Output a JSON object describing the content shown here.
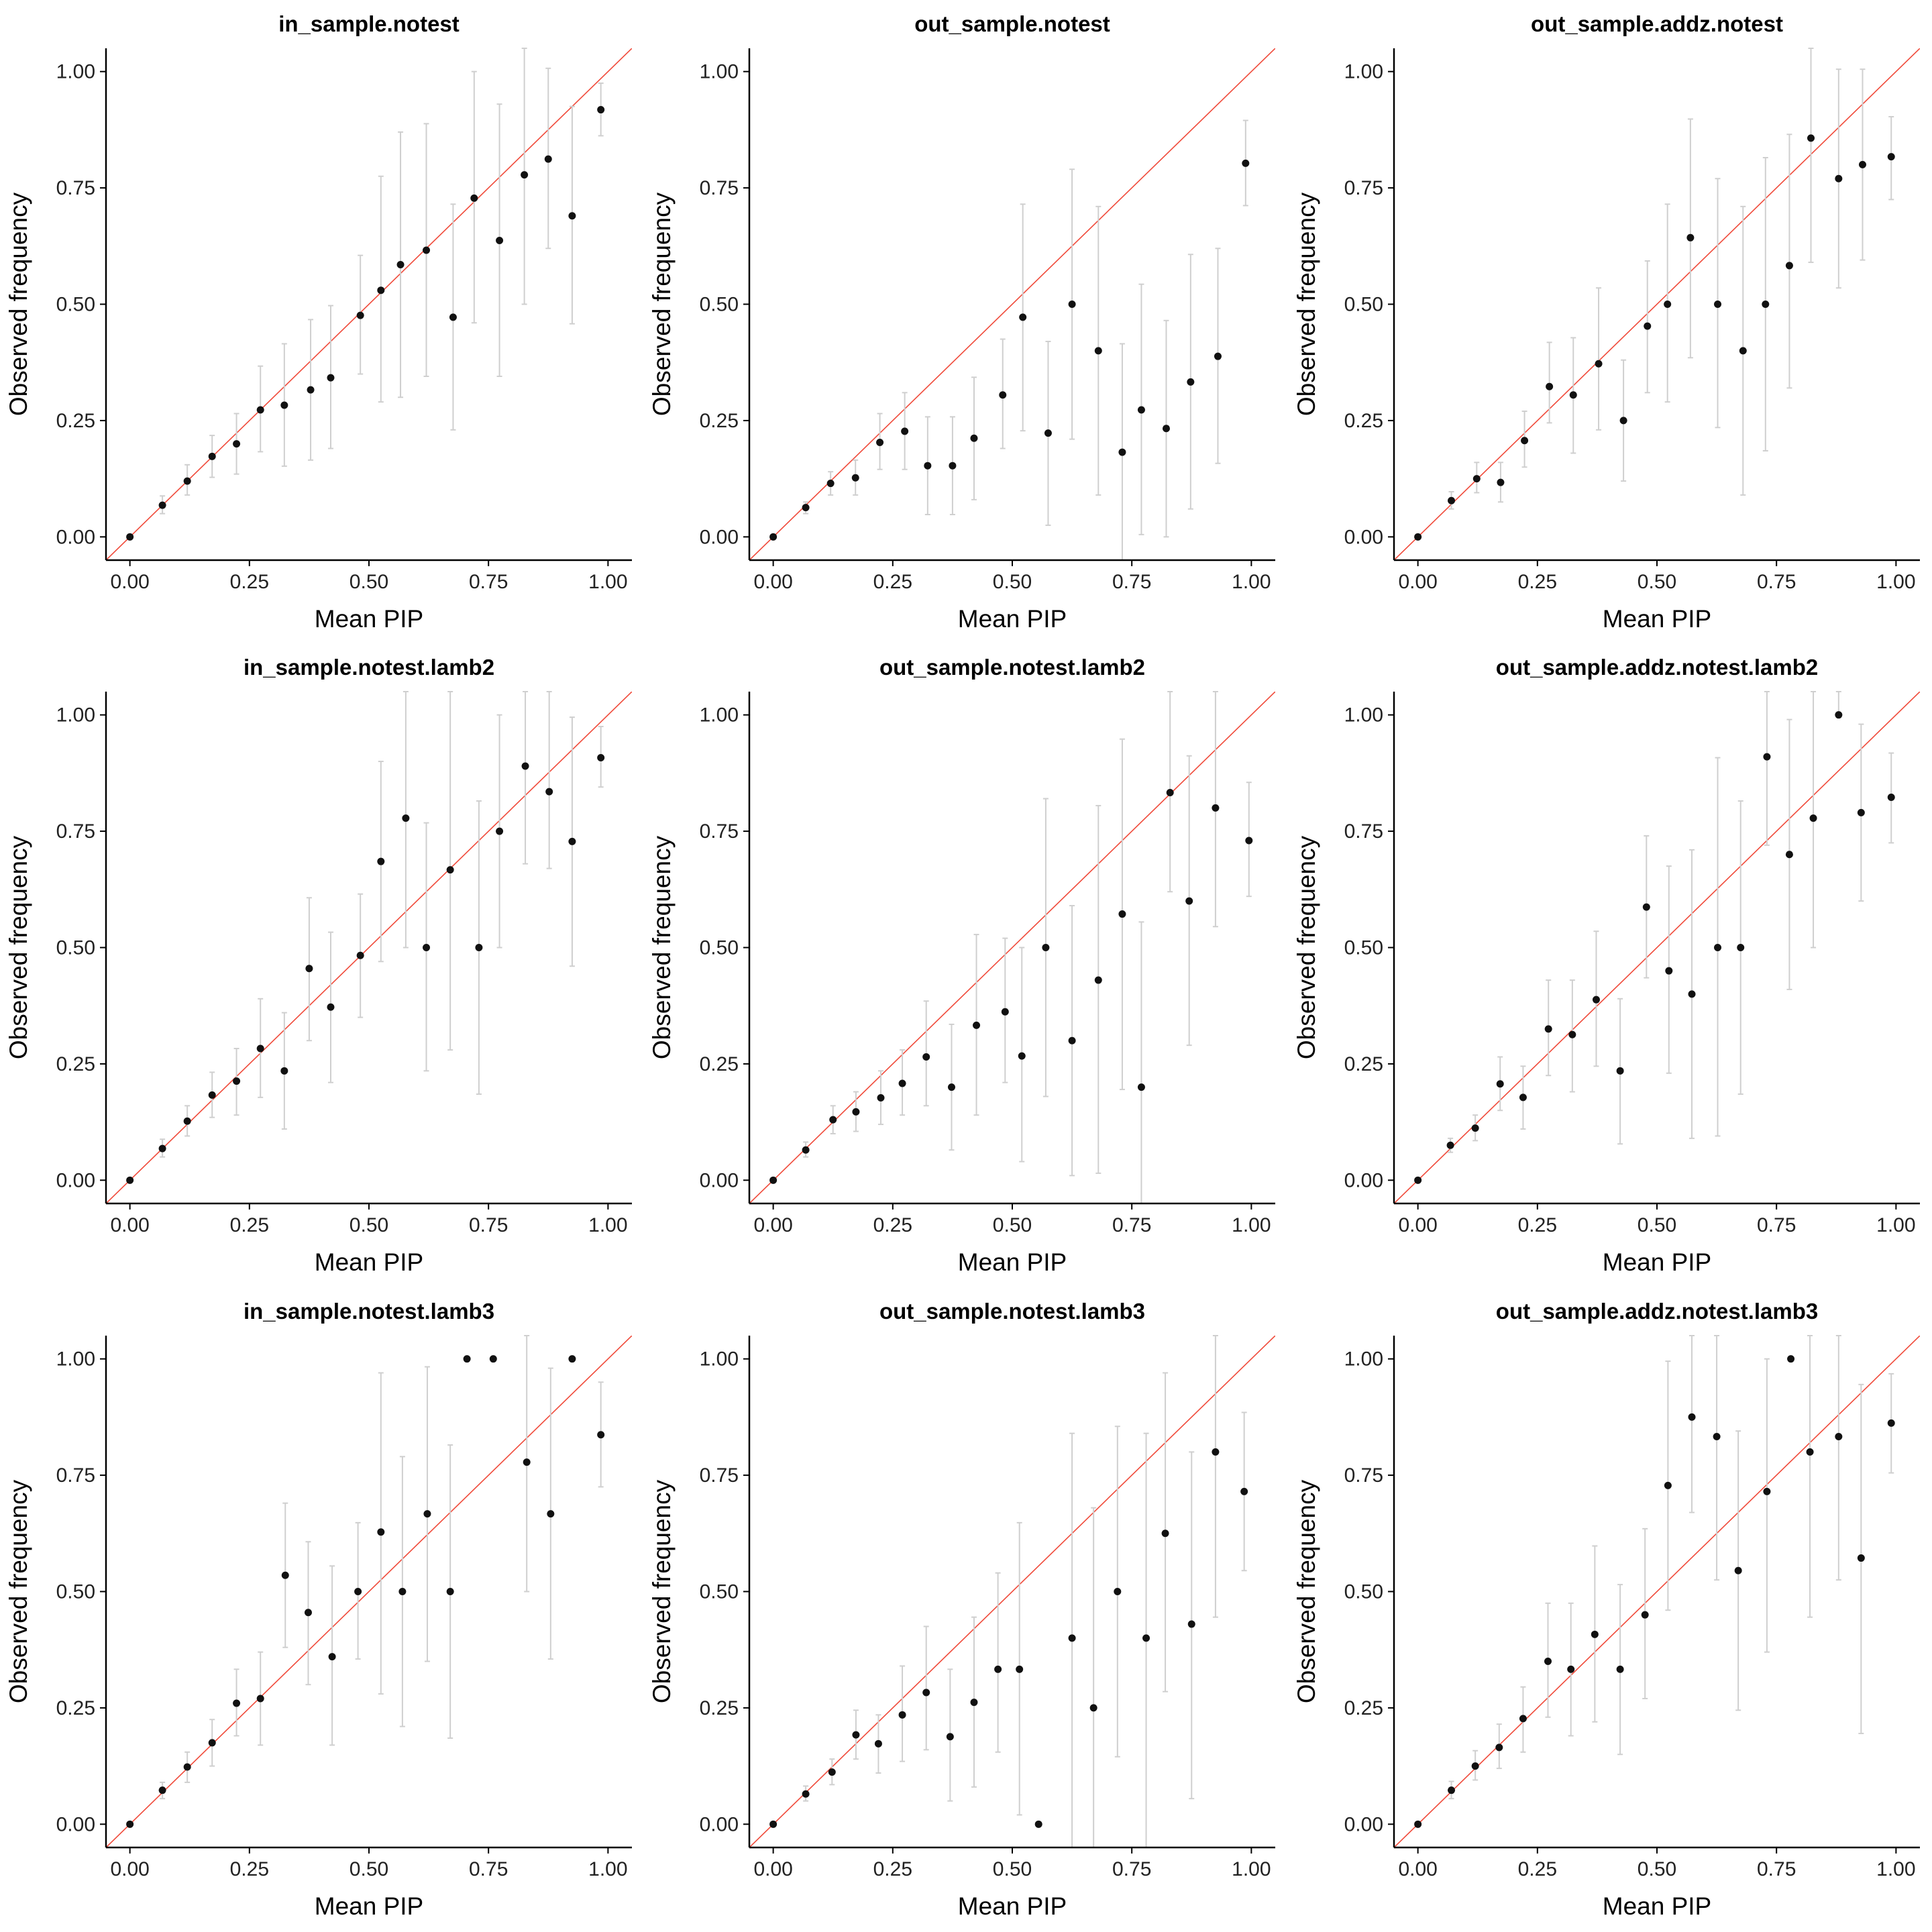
{
  "chart_data": [
    {
      "type": "scatter",
      "title": "in_sample.notest",
      "xlabel": "Mean PIP",
      "ylabel": "Observed frequency",
      "xlim": [
        -0.05,
        1.05
      ],
      "ylim": [
        -0.05,
        1.05
      ],
      "xticks": [
        "0.00",
        "0.25",
        "0.50",
        "0.75",
        "1.00"
      ],
      "yticks": [
        "0.00",
        "0.25",
        "0.50",
        "0.75",
        "1.00"
      ],
      "grid": false,
      "reference_line": "y = x",
      "x": [
        0.0,
        0.068,
        0.12,
        0.172,
        0.223,
        0.273,
        0.323,
        0.378,
        0.42,
        0.482,
        0.525,
        0.566,
        0.62,
        0.676,
        0.72,
        0.773,
        0.825,
        0.875,
        0.925,
        0.985
      ],
      "y": [
        0.0,
        0.068,
        0.12,
        0.173,
        0.2,
        0.273,
        0.283,
        0.316,
        0.342,
        0.476,
        0.53,
        0.585,
        0.616,
        0.472,
        0.728,
        0.637,
        0.778,
        0.812,
        0.69,
        0.918
      ],
      "low": [
        0.0,
        0.05,
        0.09,
        0.128,
        0.135,
        0.183,
        0.152,
        0.165,
        0.19,
        0.35,
        0.29,
        0.3,
        0.345,
        0.23,
        0.46,
        0.345,
        0.5,
        0.62,
        0.458,
        0.862
      ],
      "high": [
        0.0,
        0.088,
        0.155,
        0.218,
        0.265,
        0.367,
        0.415,
        0.467,
        0.497,
        0.605,
        0.775,
        0.87,
        0.888,
        0.715,
        1.0,
        0.93,
        1.05,
        1.007,
        0.925,
        0.975
      ]
    },
    {
      "type": "scatter",
      "title": "out_sample.notest",
      "xlabel": "Mean PIP",
      "ylabel": "Observed frequency",
      "xlim": [
        -0.05,
        1.05
      ],
      "ylim": [
        -0.05,
        1.05
      ],
      "xticks": [
        "0.00",
        "0.25",
        "0.50",
        "0.75",
        "1.00"
      ],
      "yticks": [
        "0.00",
        "0.25",
        "0.50",
        "0.75",
        "1.00"
      ],
      "grid": false,
      "reference_line": "y = x",
      "x": [
        0.0,
        0.068,
        0.12,
        0.172,
        0.223,
        0.275,
        0.323,
        0.375,
        0.42,
        0.48,
        0.522,
        0.575,
        0.625,
        0.68,
        0.73,
        0.77,
        0.822,
        0.873,
        0.93,
        0.988
      ],
      "y": [
        0.0,
        0.063,
        0.115,
        0.127,
        0.203,
        0.227,
        0.153,
        0.153,
        0.212,
        0.305,
        0.472,
        0.223,
        0.5,
        0.4,
        0.182,
        0.273,
        0.233,
        0.333,
        0.388,
        0.803
      ],
      "low": [
        0.0,
        0.05,
        0.09,
        0.09,
        0.145,
        0.145,
        0.048,
        0.048,
        0.08,
        0.19,
        0.228,
        0.025,
        0.21,
        0.09,
        -0.05,
        0.005,
        0.0,
        0.06,
        0.158,
        0.712
      ],
      "high": [
        0.0,
        0.075,
        0.14,
        0.165,
        0.265,
        0.31,
        0.258,
        0.258,
        0.343,
        0.425,
        0.715,
        0.42,
        0.79,
        0.71,
        0.415,
        0.543,
        0.465,
        0.607,
        0.62,
        0.895
      ]
    },
    {
      "type": "scatter",
      "title": "out_sample.addz.notest",
      "xlabel": "Mean PIP",
      "ylabel": "Observed frequency",
      "xlim": [
        -0.05,
        1.05
      ],
      "ylim": [
        -0.05,
        1.05
      ],
      "xticks": [
        "0.00",
        "0.25",
        "0.50",
        "0.75",
        "1.00"
      ],
      "yticks": [
        "0.00",
        "0.25",
        "0.50",
        "0.75",
        "1.00"
      ],
      "grid": false,
      "reference_line": "y = x",
      "x": [
        0.0,
        0.07,
        0.123,
        0.173,
        0.223,
        0.275,
        0.325,
        0.378,
        0.43,
        0.48,
        0.522,
        0.57,
        0.627,
        0.68,
        0.727,
        0.777,
        0.822,
        0.88,
        0.93,
        0.99
      ],
      "y": [
        0.0,
        0.078,
        0.125,
        0.117,
        0.207,
        0.323,
        0.305,
        0.372,
        0.25,
        0.453,
        0.5,
        0.643,
        0.5,
        0.4,
        0.5,
        0.583,
        0.857,
        0.77,
        0.8,
        0.817
      ],
      "low": [
        0.0,
        0.06,
        0.095,
        0.075,
        0.15,
        0.245,
        0.18,
        0.23,
        0.12,
        0.31,
        0.29,
        0.385,
        0.235,
        0.09,
        0.185,
        0.32,
        0.59,
        0.535,
        0.595,
        0.725
      ],
      "high": [
        0.0,
        0.097,
        0.16,
        0.16,
        0.27,
        0.418,
        0.428,
        0.535,
        0.38,
        0.593,
        0.715,
        0.898,
        0.77,
        0.71,
        0.815,
        0.865,
        1.05,
        1.005,
        1.005,
        0.903
      ]
    },
    {
      "type": "scatter",
      "title": "in_sample.notest.lamb2",
      "xlabel": "Mean PIP",
      "ylabel": "Observed frequency",
      "xlim": [
        -0.05,
        1.05
      ],
      "ylim": [
        -0.05,
        1.05
      ],
      "xticks": [
        "0.00",
        "0.25",
        "0.50",
        "0.75",
        "1.00"
      ],
      "yticks": [
        "0.00",
        "0.25",
        "0.50",
        "0.75",
        "1.00"
      ],
      "grid": false,
      "reference_line": "y = x",
      "x": [
        0.0,
        0.068,
        0.12,
        0.172,
        0.223,
        0.273,
        0.323,
        0.375,
        0.42,
        0.482,
        0.525,
        0.577,
        0.62,
        0.67,
        0.73,
        0.773,
        0.827,
        0.877,
        0.925,
        0.985
      ],
      "y": [
        0.0,
        0.068,
        0.127,
        0.183,
        0.213,
        0.283,
        0.235,
        0.455,
        0.372,
        0.483,
        0.685,
        0.778,
        0.5,
        0.667,
        0.5,
        0.75,
        0.89,
        0.835,
        0.728,
        0.908
      ],
      "low": [
        0.0,
        0.05,
        0.095,
        0.135,
        0.14,
        0.178,
        0.11,
        0.3,
        0.21,
        0.35,
        0.47,
        0.5,
        0.235,
        0.28,
        0.185,
        0.5,
        0.68,
        0.67,
        0.46,
        0.845
      ],
      "high": [
        0.0,
        0.088,
        0.16,
        0.232,
        0.283,
        0.39,
        0.36,
        0.607,
        0.533,
        0.615,
        0.9,
        1.05,
        0.768,
        1.05,
        0.815,
        1.0,
        1.05,
        1.05,
        0.995,
        0.975
      ]
    },
    {
      "type": "scatter",
      "title": "out_sample.notest.lamb2",
      "xlabel": "Mean PIP",
      "ylabel": "Observed frequency",
      "xlim": [
        -0.05,
        1.05
      ],
      "ylim": [
        -0.05,
        1.05
      ],
      "xticks": [
        "0.00",
        "0.25",
        "0.50",
        "0.75",
        "1.00"
      ],
      "yticks": [
        "0.00",
        "0.25",
        "0.50",
        "0.75",
        "1.00"
      ],
      "grid": false,
      "reference_line": "y = x",
      "x": [
        0.0,
        0.068,
        0.125,
        0.173,
        0.225,
        0.27,
        0.32,
        0.373,
        0.425,
        0.485,
        0.52,
        0.57,
        0.625,
        0.68,
        0.73,
        0.77,
        0.83,
        0.87,
        0.925,
        0.995
      ],
      "y": [
        0.0,
        0.065,
        0.13,
        0.147,
        0.177,
        0.208,
        0.265,
        0.2,
        0.333,
        0.362,
        0.267,
        0.5,
        0.3,
        0.43,
        0.572,
        0.2,
        0.833,
        0.6,
        0.8,
        0.73
      ],
      "low": [
        0.0,
        0.05,
        0.1,
        0.105,
        0.12,
        0.14,
        0.16,
        0.065,
        0.14,
        0.21,
        0.04,
        0.18,
        0.01,
        0.015,
        0.195,
        -0.05,
        0.62,
        0.29,
        0.545,
        0.61
      ],
      "high": [
        0.0,
        0.082,
        0.16,
        0.19,
        0.235,
        0.28,
        0.385,
        0.335,
        0.528,
        0.52,
        0.5,
        0.82,
        0.59,
        0.805,
        0.948,
        0.555,
        1.05,
        0.912,
        1.05,
        0.855
      ]
    },
    {
      "type": "scatter",
      "title": "out_sample.addz.notest.lamb2",
      "xlabel": "Mean PIP",
      "ylabel": "Observed frequency",
      "xlim": [
        -0.05,
        1.05
      ],
      "ylim": [
        -0.05,
        1.05
      ],
      "xticks": [
        "0.00",
        "0.25",
        "0.50",
        "0.75",
        "1.00"
      ],
      "yticks": [
        "0.00",
        "0.25",
        "0.50",
        "0.75",
        "1.00"
      ],
      "grid": false,
      "reference_line": "y = x",
      "x": [
        0.0,
        0.068,
        0.12,
        0.172,
        0.22,
        0.273,
        0.323,
        0.373,
        0.423,
        0.478,
        0.525,
        0.573,
        0.627,
        0.675,
        0.73,
        0.777,
        0.827,
        0.88,
        0.927,
        0.99
      ],
      "y": [
        0.0,
        0.075,
        0.112,
        0.207,
        0.178,
        0.325,
        0.313,
        0.388,
        0.235,
        0.587,
        0.45,
        0.4,
        0.5,
        0.5,
        0.91,
        0.7,
        0.778,
        1.0,
        0.79,
        0.823
      ],
      "low": [
        0.0,
        0.06,
        0.085,
        0.15,
        0.11,
        0.225,
        0.19,
        0.245,
        0.078,
        0.435,
        0.23,
        0.09,
        0.095,
        0.185,
        0.72,
        0.41,
        0.5,
        1.0,
        0.6,
        0.725
      ],
      "high": [
        0.0,
        0.09,
        0.14,
        0.265,
        0.245,
        0.43,
        0.43,
        0.535,
        0.39,
        0.74,
        0.675,
        0.71,
        0.908,
        0.815,
        1.05,
        0.99,
        1.05,
        1.05,
        0.98,
        0.918
      ]
    },
    {
      "type": "scatter",
      "title": "in_sample.notest.lamb3",
      "xlabel": "Mean PIP",
      "ylabel": "Observed frequency",
      "xlim": [
        -0.05,
        1.05
      ],
      "ylim": [
        -0.05,
        1.05
      ],
      "xticks": [
        "0.00",
        "0.25",
        "0.50",
        "0.75",
        "1.00"
      ],
      "yticks": [
        "0.00",
        "0.25",
        "0.50",
        "0.75",
        "1.00"
      ],
      "grid": false,
      "reference_line": "y = x",
      "x": [
        0.0,
        0.068,
        0.12,
        0.172,
        0.223,
        0.273,
        0.325,
        0.373,
        0.423,
        0.477,
        0.525,
        0.57,
        0.622,
        0.67,
        0.705,
        0.76,
        0.83,
        0.88,
        0.925,
        0.985
      ],
      "y": [
        0.0,
        0.073,
        0.123,
        0.175,
        0.26,
        0.27,
        0.535,
        0.455,
        0.36,
        0.5,
        0.628,
        0.5,
        0.667,
        0.5,
        1.0,
        1.0,
        0.778,
        0.667,
        1.0,
        0.837
      ],
      "low": [
        0.0,
        0.055,
        0.09,
        0.125,
        0.19,
        0.17,
        0.38,
        0.3,
        0.17,
        0.355,
        0.28,
        0.21,
        0.35,
        0.185,
        1.0,
        1.0,
        0.5,
        0.355,
        1.0,
        0.725
      ],
      "high": [
        0.0,
        0.09,
        0.155,
        0.225,
        0.333,
        0.37,
        0.69,
        0.607,
        0.555,
        0.648,
        0.97,
        0.79,
        0.983,
        0.815,
        1.0,
        1.0,
        1.05,
        0.98,
        1.0,
        0.95
      ]
    },
    {
      "type": "scatter",
      "title": "out_sample.notest.lamb3",
      "xlabel": "Mean PIP",
      "ylabel": "Observed frequency",
      "xlim": [
        -0.05,
        1.05
      ],
      "ylim": [
        -0.05,
        1.05
      ],
      "xticks": [
        "0.00",
        "0.25",
        "0.50",
        "0.75",
        "1.00"
      ],
      "yticks": [
        "0.00",
        "0.25",
        "0.50",
        "0.75",
        "1.00"
      ],
      "grid": false,
      "reference_line": "y = x",
      "x": [
        0.0,
        0.068,
        0.123,
        0.173,
        0.22,
        0.27,
        0.32,
        0.37,
        0.42,
        0.47,
        0.515,
        0.555,
        0.625,
        0.67,
        0.72,
        0.78,
        0.82,
        0.875,
        0.925,
        0.985
      ],
      "y": [
        0.0,
        0.065,
        0.112,
        0.192,
        0.173,
        0.235,
        0.283,
        0.188,
        0.262,
        0.333,
        0.333,
        0.0,
        0.4,
        0.25,
        0.5,
        0.4,
        0.625,
        0.43,
        0.8,
        0.715
      ],
      "low": [
        0.0,
        0.05,
        0.085,
        0.14,
        0.11,
        0.135,
        0.16,
        0.05,
        0.08,
        0.155,
        0.02,
        0.0,
        -0.05,
        -0.05,
        0.145,
        -0.05,
        0.285,
        0.055,
        0.445,
        0.545
      ],
      "high": [
        0.0,
        0.082,
        0.14,
        0.245,
        0.235,
        0.34,
        0.425,
        0.333,
        0.445,
        0.54,
        0.648,
        0.0,
        0.84,
        0.68,
        0.855,
        0.84,
        0.97,
        0.8,
        1.05,
        0.885
      ]
    },
    {
      "type": "scatter",
      "title": "out_sample.addz.notest.lamb3",
      "xlabel": "Mean PIP",
      "ylabel": "Observed frequency",
      "xlim": [
        -0.05,
        1.05
      ],
      "ylim": [
        -0.05,
        1.05
      ],
      "xticks": [
        "0.00",
        "0.25",
        "0.50",
        "0.75",
        "1.00"
      ],
      "yticks": [
        "0.00",
        "0.25",
        "0.50",
        "0.75",
        "1.00"
      ],
      "grid": false,
      "reference_line": "y = x",
      "x": [
        0.0,
        0.07,
        0.12,
        0.17,
        0.22,
        0.272,
        0.32,
        0.37,
        0.423,
        0.475,
        0.523,
        0.573,
        0.625,
        0.67,
        0.73,
        0.78,
        0.82,
        0.88,
        0.927,
        0.99
      ],
      "y": [
        0.0,
        0.073,
        0.125,
        0.165,
        0.227,
        0.35,
        0.333,
        0.408,
        0.333,
        0.45,
        0.728,
        0.875,
        0.833,
        0.545,
        0.715,
        1.0,
        0.8,
        0.833,
        0.572,
        0.862
      ],
      "low": [
        0.0,
        0.055,
        0.095,
        0.12,
        0.155,
        0.23,
        0.19,
        0.22,
        0.15,
        0.27,
        0.46,
        0.67,
        0.525,
        0.245,
        0.37,
        1.0,
        0.445,
        0.525,
        0.195,
        0.755
      ],
      "high": [
        0.0,
        0.092,
        0.158,
        0.215,
        0.295,
        0.475,
        0.475,
        0.598,
        0.515,
        0.635,
        0.995,
        1.05,
        1.05,
        0.845,
        1.0,
        1.0,
        1.05,
        1.05,
        0.945,
        0.968
      ]
    }
  ]
}
